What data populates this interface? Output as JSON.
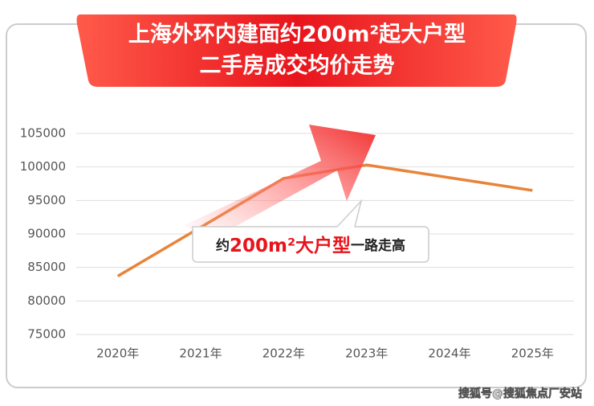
{
  "chart_data": {
    "type": "line",
    "title_lines": [
      "上海外环内建面约200m²起大户型",
      "二手房成交均价走势"
    ],
    "categories": [
      "2020年",
      "2021年",
      "2022年",
      "2023年",
      "2024年",
      "2025年"
    ],
    "series": [
      {
        "name": "二手房成交均价",
        "color": "#e8843a",
        "values": [
          83700,
          91000,
          98300,
          100300,
          98400,
          96500
        ]
      }
    ],
    "ylim": [
      75000,
      105000
    ],
    "yticks": [
      75000,
      80000,
      85000,
      90000,
      95000,
      100000,
      105000
    ],
    "grid": true,
    "annotation": {
      "prefix": "约",
      "highlight": "200m²大户型",
      "suffix": "一路走高"
    },
    "watermark": "搜狐号@搜狐焦点厂安站"
  }
}
